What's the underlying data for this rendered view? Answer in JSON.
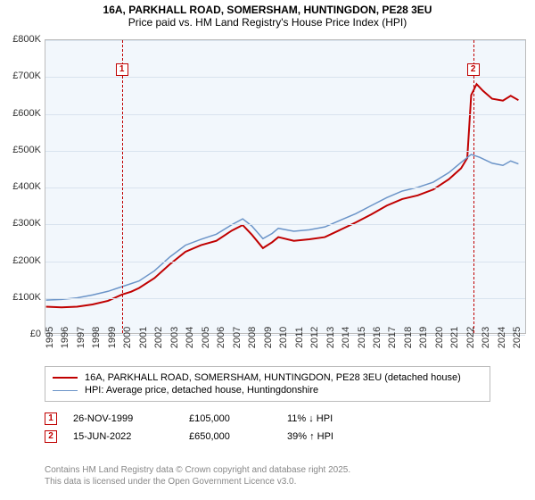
{
  "title_line1": "16A, PARKHALL ROAD, SOMERSHAM, HUNTINGDON, PE28 3EU",
  "title_line2": "Price paid vs. HM Land Registry's House Price Index (HPI)",
  "chart": {
    "type": "line",
    "background_color": "#f2f7fc",
    "grid_color": "#d9e3ee",
    "border_color": "#bcbcbc",
    "x": {
      "min": 1995,
      "max": 2025.9,
      "ticks": [
        1995,
        1996,
        1997,
        1998,
        1999,
        2000,
        2001,
        2002,
        2003,
        2004,
        2005,
        2006,
        2007,
        2008,
        2009,
        2010,
        2011,
        2012,
        2013,
        2014,
        2015,
        2016,
        2017,
        2018,
        2019,
        2020,
        2021,
        2022,
        2023,
        2024,
        2025
      ],
      "tick_labels": [
        "1995",
        "1996",
        "1997",
        "1998",
        "1999",
        "2000",
        "2001",
        "2002",
        "2003",
        "2004",
        "2005",
        "2006",
        "2007",
        "2008",
        "2009",
        "2010",
        "2011",
        "2012",
        "2013",
        "2014",
        "2015",
        "2016",
        "2017",
        "2018",
        "2019",
        "2020",
        "2021",
        "2022",
        "2023",
        "2024",
        "2025"
      ]
    },
    "y": {
      "min": 0,
      "max": 800000,
      "ticks": [
        0,
        100000,
        200000,
        300000,
        400000,
        500000,
        600000,
        700000,
        800000
      ],
      "tick_labels": [
        "£0",
        "£100K",
        "£200K",
        "£300K",
        "£400K",
        "£500K",
        "£600K",
        "£700K",
        "£800K"
      ]
    },
    "series": [
      {
        "id": "price_paid",
        "label": "16A, PARKHALL ROAD, SOMERSHAM, HUNTINGDON, PE28 3EU (detached house)",
        "color": "#c00000",
        "width": 2,
        "points": [
          [
            1995.0,
            72000
          ],
          [
            1996.0,
            70000
          ],
          [
            1997.0,
            72000
          ],
          [
            1998.0,
            78000
          ],
          [
            1999.0,
            88000
          ],
          [
            1999.9,
            105000
          ],
          [
            2000.5,
            113000
          ],
          [
            2001.0,
            123000
          ],
          [
            2002.0,
            150000
          ],
          [
            2003.0,
            188000
          ],
          [
            2004.0,
            222000
          ],
          [
            2005.0,
            240000
          ],
          [
            2006.0,
            252000
          ],
          [
            2007.0,
            280000
          ],
          [
            2007.7,
            295000
          ],
          [
            2008.3,
            268000
          ],
          [
            2009.0,
            232000
          ],
          [
            2009.6,
            248000
          ],
          [
            2010.0,
            262000
          ],
          [
            2011.0,
            252000
          ],
          [
            2012.0,
            256000
          ],
          [
            2013.0,
            262000
          ],
          [
            2014.0,
            282000
          ],
          [
            2015.0,
            302000
          ],
          [
            2016.0,
            324000
          ],
          [
            2017.0,
            348000
          ],
          [
            2018.0,
            366000
          ],
          [
            2019.0,
            376000
          ],
          [
            2020.0,
            392000
          ],
          [
            2021.0,
            420000
          ],
          [
            2021.8,
            450000
          ],
          [
            2022.2,
            478000
          ],
          [
            2022.45,
            650000
          ],
          [
            2022.8,
            680000
          ],
          [
            2023.2,
            662000
          ],
          [
            2023.8,
            640000
          ],
          [
            2024.5,
            635000
          ],
          [
            2025.0,
            648000
          ],
          [
            2025.5,
            636000
          ]
        ]
      },
      {
        "id": "hpi",
        "label": "HPI: Average price, detached house, Huntingdonshire",
        "color": "#6b94c8",
        "width": 1.5,
        "points": [
          [
            1995.0,
            90000
          ],
          [
            1996.0,
            92000
          ],
          [
            1997.0,
            96000
          ],
          [
            1998.0,
            104000
          ],
          [
            1999.0,
            114000
          ],
          [
            2000.0,
            128000
          ],
          [
            2001.0,
            142000
          ],
          [
            2002.0,
            170000
          ],
          [
            2003.0,
            208000
          ],
          [
            2004.0,
            240000
          ],
          [
            2005.0,
            256000
          ],
          [
            2006.0,
            270000
          ],
          [
            2007.0,
            296000
          ],
          [
            2007.7,
            312000
          ],
          [
            2008.3,
            292000
          ],
          [
            2009.0,
            258000
          ],
          [
            2009.6,
            272000
          ],
          [
            2010.0,
            286000
          ],
          [
            2011.0,
            278000
          ],
          [
            2012.0,
            282000
          ],
          [
            2013.0,
            290000
          ],
          [
            2014.0,
            308000
          ],
          [
            2015.0,
            326000
          ],
          [
            2016.0,
            348000
          ],
          [
            2017.0,
            370000
          ],
          [
            2018.0,
            388000
          ],
          [
            2019.0,
            398000
          ],
          [
            2020.0,
            412000
          ],
          [
            2021.0,
            438000
          ],
          [
            2021.8,
            466000
          ],
          [
            2022.45,
            488000
          ],
          [
            2023.0,
            480000
          ],
          [
            2023.8,
            464000
          ],
          [
            2024.5,
            458000
          ],
          [
            2025.0,
            470000
          ],
          [
            2025.5,
            462000
          ]
        ]
      }
    ],
    "markers": [
      {
        "num": "1",
        "x": 1999.9,
        "box_y": 720000
      },
      {
        "num": "2",
        "x": 2022.45,
        "box_y": 720000
      }
    ]
  },
  "legend": {
    "rows": [
      {
        "color": "#c00000",
        "width": 2,
        "label": "16A, PARKHALL ROAD, SOMERSHAM, HUNTINGDON, PE28 3EU (detached house)"
      },
      {
        "color": "#6b94c8",
        "width": 1.5,
        "label": "HPI: Average price, detached house, Huntingdonshire"
      }
    ]
  },
  "sales": [
    {
      "num": "1",
      "date": "26-NOV-1999",
      "price": "£105,000",
      "delta": "11% ↓ HPI"
    },
    {
      "num": "2",
      "date": "15-JUN-2022",
      "price": "£650,000",
      "delta": "39% ↑ HPI"
    }
  ],
  "footer_line1": "Contains HM Land Registry data © Crown copyright and database right 2025.",
  "footer_line2": "This data is licensed under the Open Government Licence v3.0."
}
